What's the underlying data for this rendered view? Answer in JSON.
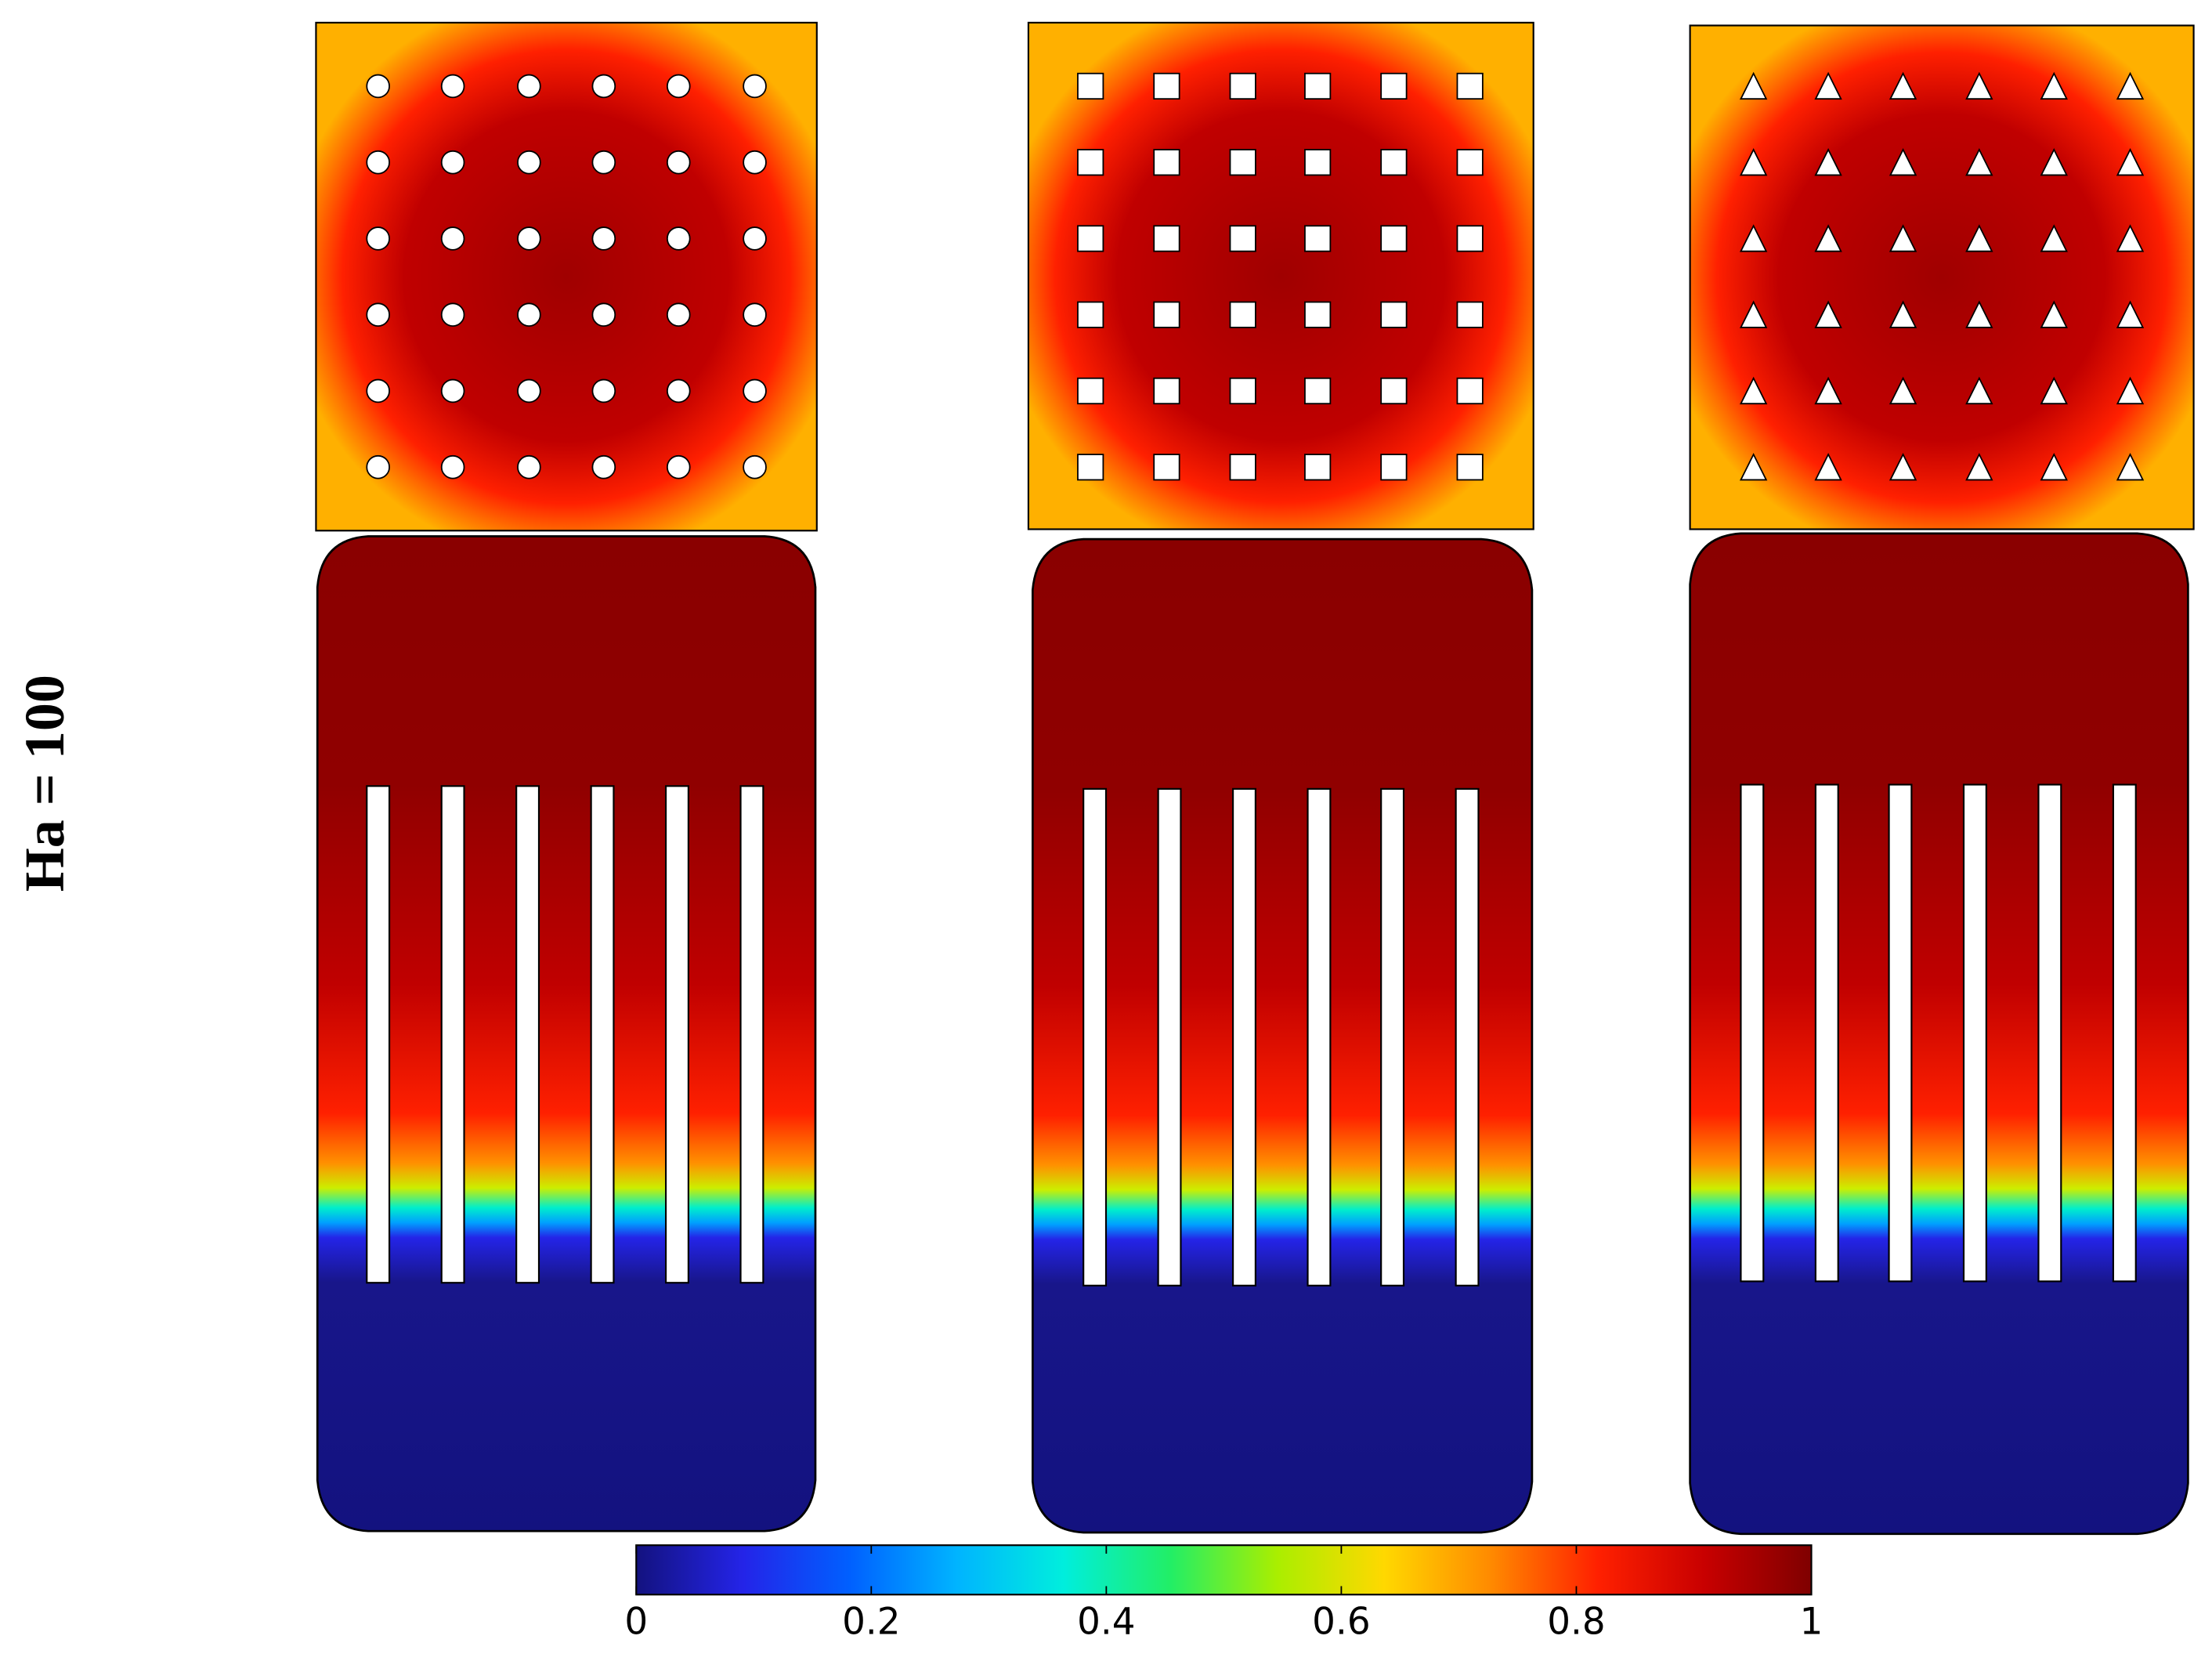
{
  "chart_data": {
    "type": "contour",
    "row_label": "Ha = 100",
    "colormap": [
      "#13127f",
      "#2424e8",
      "#0060ff",
      "#00b4ff",
      "#00eedd",
      "#22ee66",
      "#aaee00",
      "#ffd800",
      "#ff8a00",
      "#ff2000",
      "#c80000",
      "#7f0000"
    ],
    "clim": [
      0,
      1
    ],
    "cticks": [
      0,
      0.2,
      0.4,
      0.6,
      0.8,
      1
    ]
  }
}
